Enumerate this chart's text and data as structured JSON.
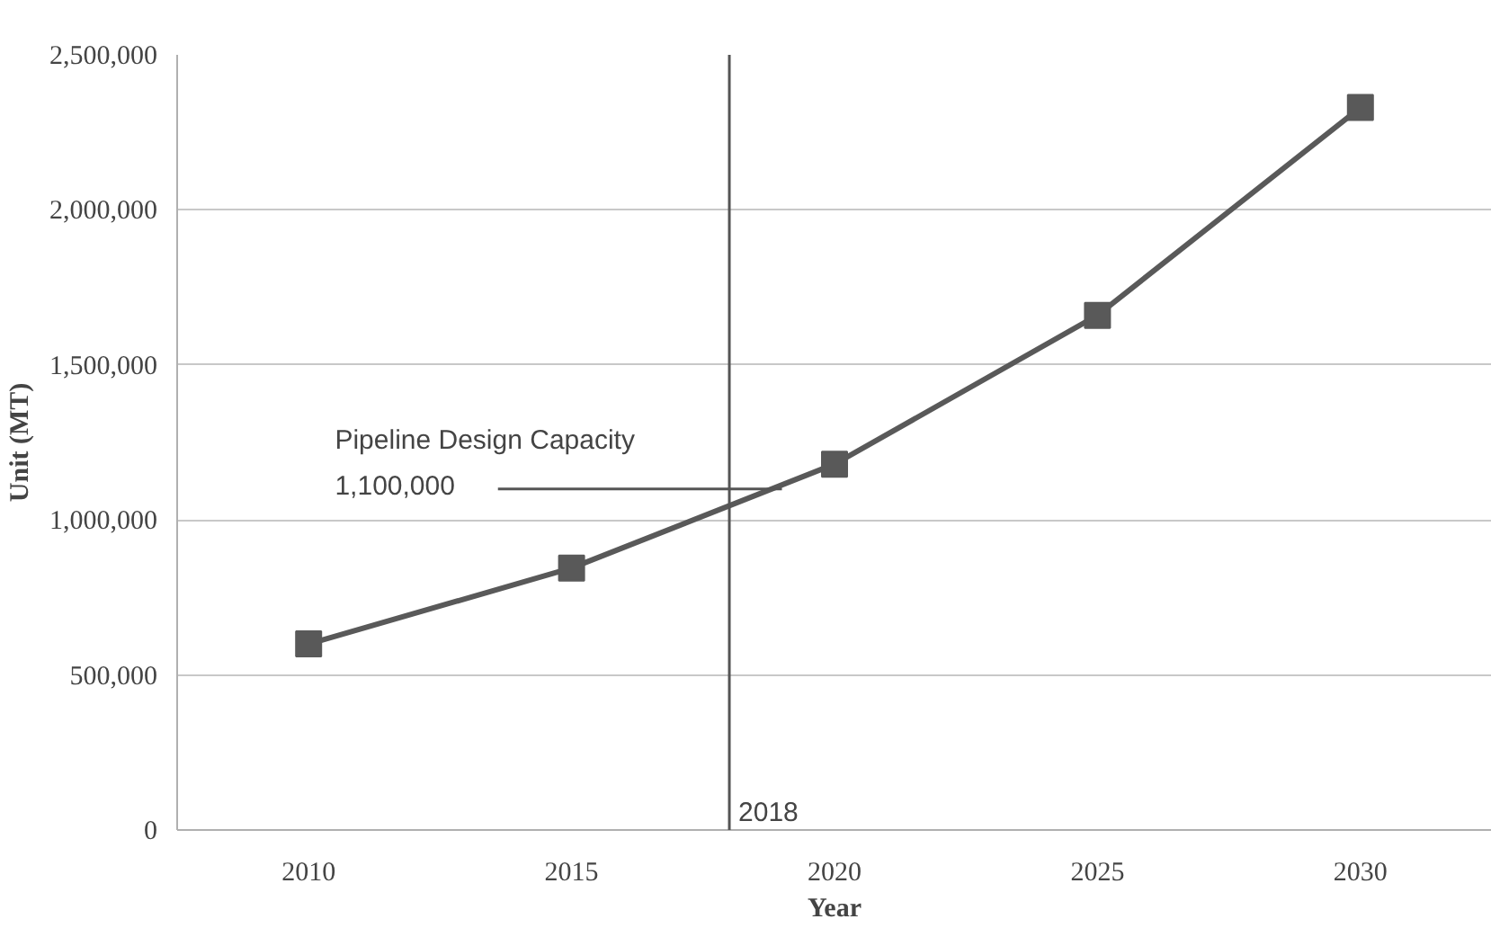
{
  "chart_data": {
    "type": "line",
    "xlabel": "Year",
    "ylabel": "Unit (MT)",
    "x": [
      2010,
      2015,
      2020,
      2025,
      2030
    ],
    "series": [
      {
        "color": "#595959",
        "values": [
          600000,
          845000,
          1180000,
          1660000,
          2330000
        ]
      }
    ],
    "xlim": [
      2007.5,
      2032.5
    ],
    "xticks": [
      2010,
      2015,
      2020,
      2025,
      2030
    ],
    "ylim": [
      0,
      2500000
    ],
    "yticks": [
      {
        "value": 0,
        "label": "0"
      },
      {
        "value": 500000,
        "label": "500,000"
      },
      {
        "value": 1000000,
        "label": "1,000,000"
      },
      {
        "value": 1500000,
        "label": "1,500,000"
      },
      {
        "value": 2000000,
        "label": "2,000,000"
      },
      {
        "value": 2500000,
        "label": "2,500,000"
      }
    ],
    "ref_lines": [
      {
        "axis": "x",
        "value": 2018,
        "label": "2018"
      },
      {
        "axis": "y",
        "value": 1100000,
        "label": "Pipeline  Design Capacity\n1,100,000"
      }
    ],
    "grid": "y",
    "marker": "square",
    "line_style": "solid"
  }
}
